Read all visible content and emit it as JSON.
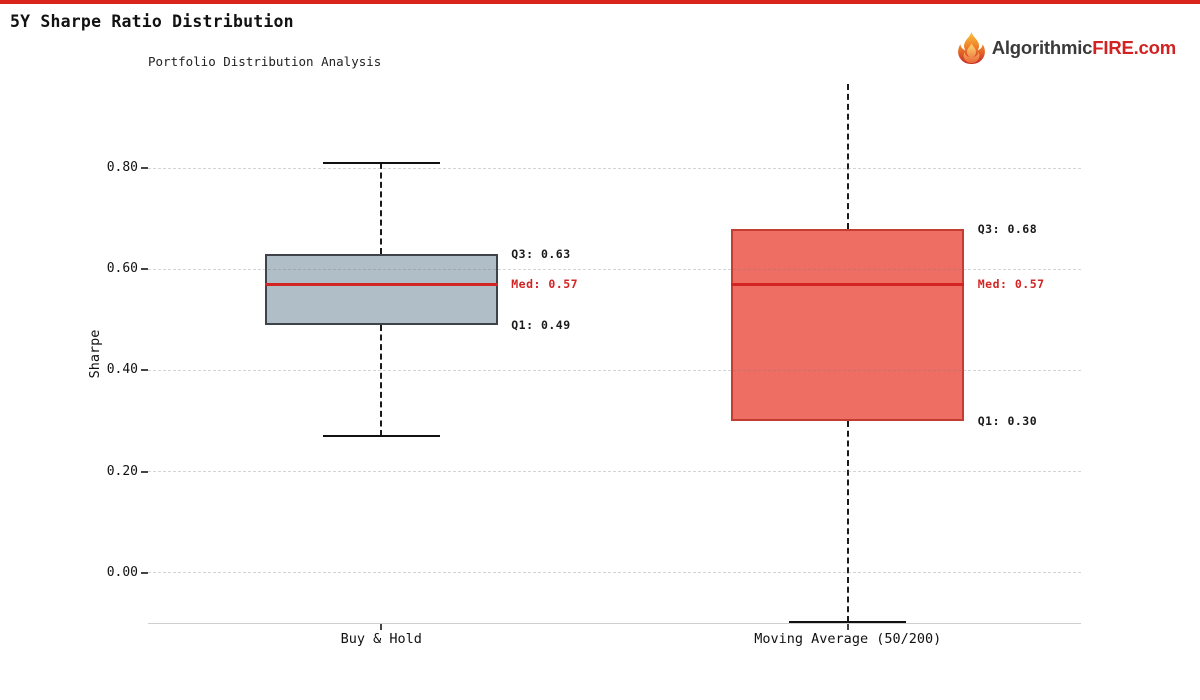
{
  "page": {
    "title": "5Y Sharpe Ratio Distribution",
    "top_bar_color": "#d9251d",
    "brand": {
      "icon": "flame-icon",
      "name_primary": "Algorithmic",
      "name_accent": "FIRE.com",
      "primary_color": "#3a3a3a",
      "accent_color": "#d32222"
    }
  },
  "chart_data": {
    "type": "box",
    "title": "Portfolio Distribution Analysis",
    "ylabel": "Sharpe",
    "xlabel": "",
    "categories": [
      "Buy & Hold",
      "Moving Average (50/200)"
    ],
    "yticks": [
      {
        "value": 0.0,
        "label": "0.00"
      },
      {
        "value": 0.2,
        "label": "0.20"
      },
      {
        "value": 0.4,
        "label": "0.40"
      },
      {
        "value": 0.6,
        "label": "0.60"
      },
      {
        "value": 0.8,
        "label": "0.80"
      }
    ],
    "ylim": [
      -0.099,
      0.966
    ],
    "grid": "horizontal-dashed",
    "median_color": "#d32424",
    "annotation_color": "#1a1a1a",
    "series": [
      {
        "name": "Buy & Hold",
        "whisker_low": 0.27,
        "q1": 0.49,
        "median": 0.57,
        "q3": 0.63,
        "whisker_high": 0.81,
        "cap_low_visible": true,
        "cap_high_visible": true,
        "fill": "#b0bfc7",
        "border": "#3d4348",
        "labels": {
          "q3": "Q3: 0.63",
          "med": "Med: 0.57",
          "q1": "Q1: 0.49"
        }
      },
      {
        "name": "Moving Average (50/200)",
        "whisker_low": -0.097,
        "q1": 0.3,
        "median": 0.57,
        "q3": 0.68,
        "whisker_high": null,
        "whisker_high_clipped": true,
        "cap_low_visible": true,
        "cap_high_visible": false,
        "fill": "#ef6e63",
        "border": "#c43d31",
        "labels": {
          "q3": "Q3: 0.68",
          "med": "Med: 0.57",
          "q1": "Q1: 0.30"
        }
      }
    ]
  }
}
